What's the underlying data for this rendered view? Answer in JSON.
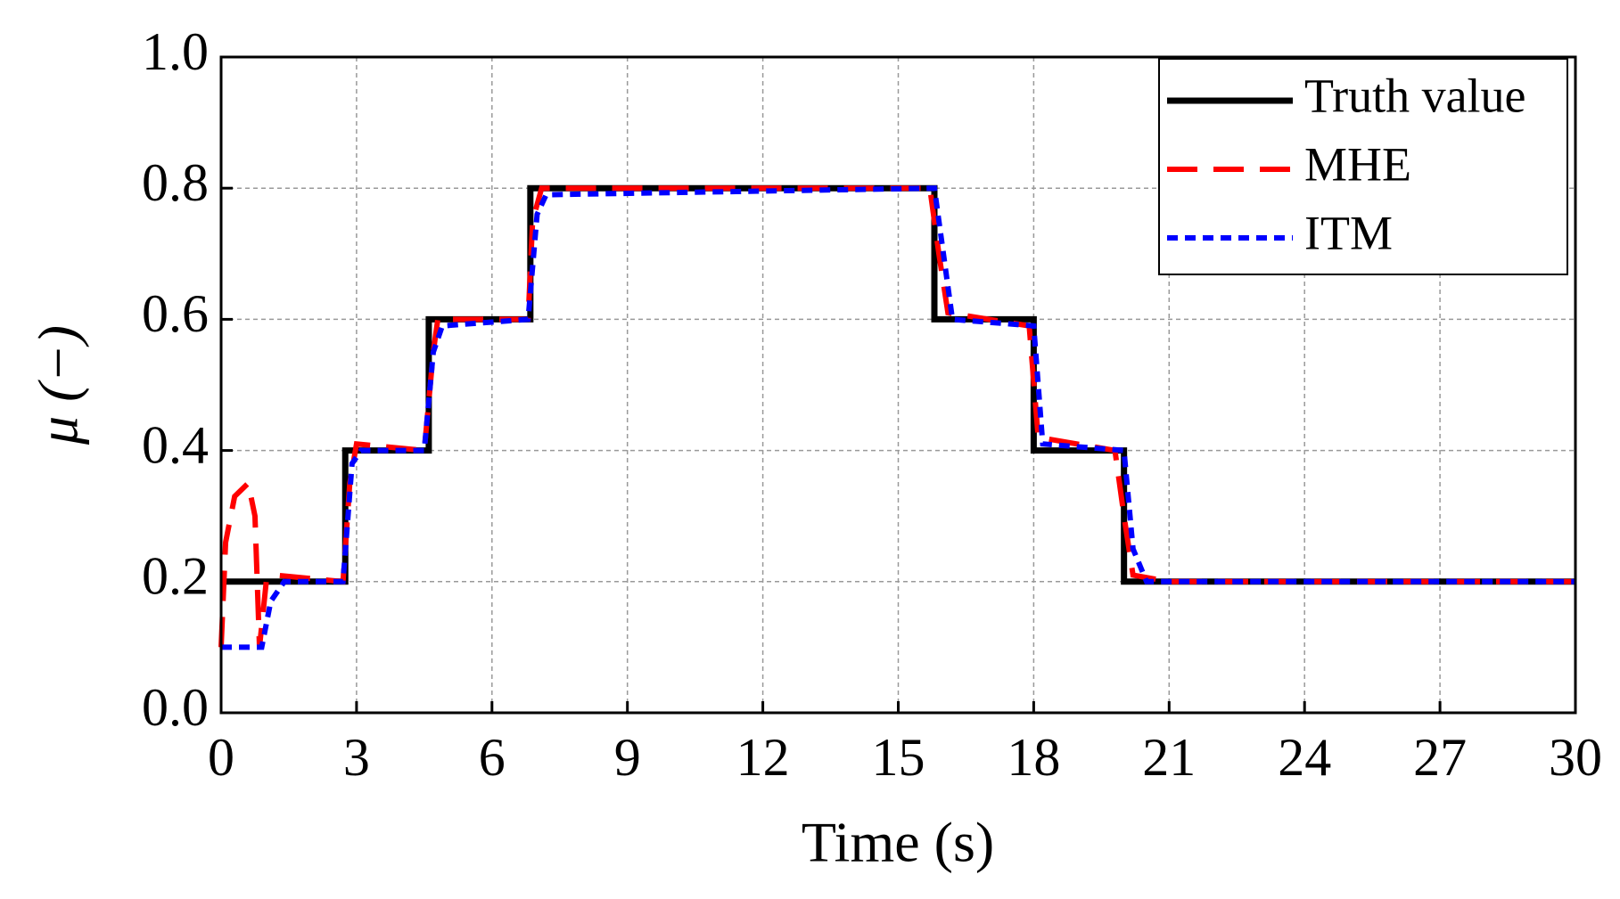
{
  "chart_data": {
    "type": "line",
    "x_label": "Time (s)",
    "y_label": "μ (−)",
    "xlim": [
      0,
      30
    ],
    "ylim": [
      0,
      1
    ],
    "xticks": [
      0,
      3,
      6,
      9,
      12,
      15,
      18,
      21,
      24,
      27,
      30
    ],
    "yticks": [
      {
        "value": 0,
        "label": "0.0"
      },
      0.2,
      0.4,
      0.6,
      0.8,
      {
        "value": 1,
        "label": "1.0"
      }
    ],
    "grid": true,
    "legend": "upper right",
    "series": [
      {
        "name": "Truth value",
        "color": "#000000",
        "style": "solid",
        "x": [
          0,
          2.75,
          2.75,
          4.6,
          4.6,
          6.85,
          6.85,
          15.8,
          15.8,
          18,
          18,
          20,
          20,
          30
        ],
        "values": [
          0.2,
          0.2,
          0.4,
          0.4,
          0.6,
          0.6,
          0.8,
          0.8,
          0.6,
          0.6,
          0.4,
          0.4,
          0.2,
          0.2
        ]
      },
      {
        "name": "MHE",
        "color": "#ff0000",
        "style": "dashed",
        "x": [
          0,
          0.1,
          0.3,
          0.6,
          0.75,
          0.85,
          1.0,
          1.2,
          2.7,
          2.85,
          3.0,
          4.5,
          4.7,
          4.8,
          6.8,
          6.9,
          7.1,
          15.7,
          15.9,
          16.1,
          17.9,
          18.1,
          19.8,
          20.0,
          20.2,
          21,
          30
        ],
        "values": [
          0.1,
          0.26,
          0.33,
          0.35,
          0.3,
          0.1,
          0.2,
          0.21,
          0.2,
          0.35,
          0.41,
          0.4,
          0.55,
          0.6,
          0.6,
          0.75,
          0.8,
          0.8,
          0.7,
          0.61,
          0.59,
          0.42,
          0.4,
          0.3,
          0.21,
          0.2,
          0.2
        ]
      },
      {
        "name": "ITM",
        "color": "#0000ff",
        "style": "dotted",
        "x": [
          0,
          0.9,
          1.1,
          1.4,
          2.7,
          2.9,
          3.1,
          4.5,
          4.7,
          4.9,
          6.8,
          7.0,
          7.2,
          15.8,
          16.0,
          16.2,
          18.0,
          18.2,
          20.0,
          20.2,
          20.5,
          30
        ],
        "values": [
          0.1,
          0.1,
          0.17,
          0.2,
          0.2,
          0.38,
          0.4,
          0.4,
          0.55,
          0.59,
          0.6,
          0.76,
          0.79,
          0.8,
          0.7,
          0.6,
          0.59,
          0.41,
          0.4,
          0.25,
          0.2,
          0.2
        ]
      }
    ]
  }
}
